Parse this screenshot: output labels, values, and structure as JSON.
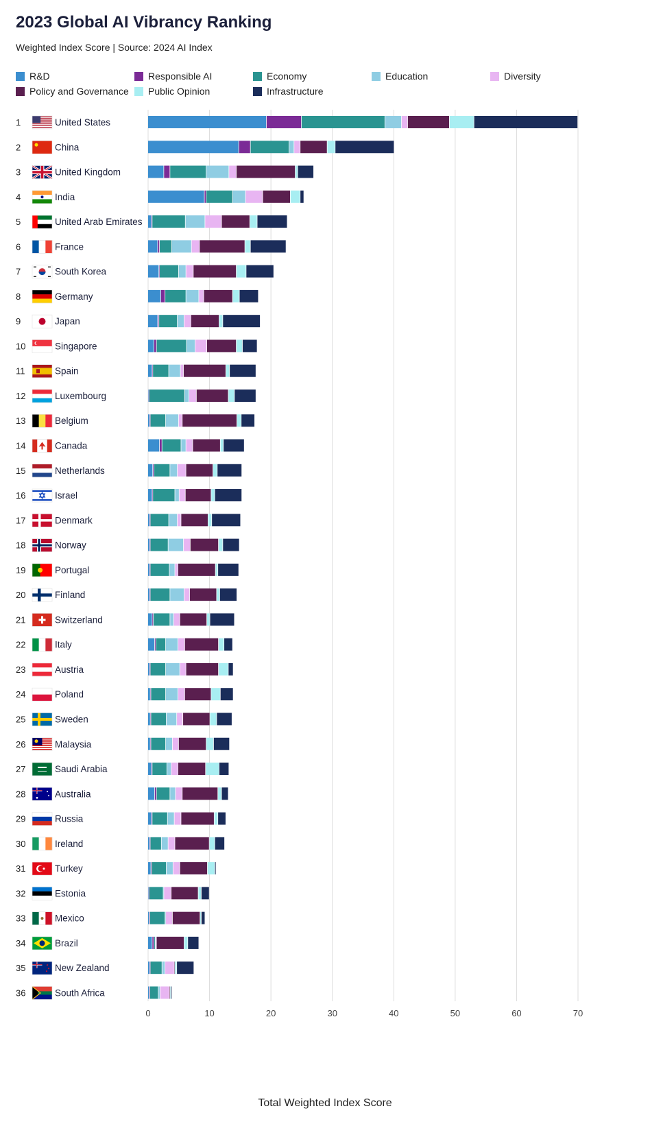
{
  "title": "2023 Global AI Vibrancy Ranking",
  "subtitle": "Weighted Index Score | Source: 2024 AI Index",
  "colors": {
    "R&D": "#3b8ecf",
    "Responsible AI": "#7b2b96",
    "Economy": "#2a9491",
    "Education": "#8fcde3",
    "Diversity": "#e8b5f2",
    "Policy and Governance": "#5a1f4f",
    "Public Opinion": "#a8eef2",
    "Infrastructure": "#1b2d5a"
  },
  "legend": [
    "R&D",
    "Responsible AI",
    "Economy",
    "Education",
    "Diversity",
    "Policy and Governance",
    "Public Opinion",
    "Infrastructure"
  ],
  "chart_data": {
    "type": "bar",
    "orientation": "horizontal",
    "stacked": true,
    "xlabel": "Total Weighted Index Score",
    "xlim": [
      0,
      70
    ],
    "xticks": [
      0,
      10,
      20,
      30,
      40,
      50,
      60,
      70
    ],
    "grid": true,
    "legend_position": "top",
    "countries": [
      {
        "rank": "1",
        "name": "United States",
        "flag": "us-flag",
        "values": [
          19.3,
          5.7,
          13.6,
          2.7,
          1.0,
          6.8,
          4.0,
          16.9
        ]
      },
      {
        "rank": "2",
        "name": "China",
        "flag": "cn-flag",
        "values": [
          14.8,
          1.9,
          6.3,
          0.8,
          1.0,
          4.4,
          1.3,
          9.6
        ]
      },
      {
        "rank": "3",
        "name": "United Kingdom",
        "flag": "gb-flag",
        "values": [
          2.6,
          1.0,
          5.9,
          3.7,
          1.2,
          9.6,
          0.4,
          2.6
        ]
      },
      {
        "rank": "4",
        "name": "India",
        "flag": "in-flag",
        "values": [
          9.2,
          0.3,
          4.3,
          2.1,
          2.8,
          4.5,
          1.6,
          0.6
        ]
      },
      {
        "rank": "5",
        "name": "United Arab Emirates",
        "flag": "ae-flag",
        "values": [
          0.6,
          0.1,
          5.4,
          3.2,
          2.7,
          4.6,
          1.2,
          4.9
        ]
      },
      {
        "rank": "6",
        "name": "France",
        "flag": "fr-flag",
        "values": [
          1.6,
          0.3,
          2.0,
          3.2,
          1.3,
          7.4,
          0.9,
          5.8
        ]
      },
      {
        "rank": "7",
        "name": "South Korea",
        "flag": "kr-flag",
        "values": [
          1.8,
          0.1,
          3.1,
          1.2,
          1.2,
          7.0,
          1.6,
          4.5
        ]
      },
      {
        "rank": "8",
        "name": "Germany",
        "flag": "de-flag",
        "values": [
          2.1,
          0.7,
          3.4,
          2.1,
          0.8,
          4.7,
          1.1,
          3.1
        ]
      },
      {
        "rank": "9",
        "name": "Japan",
        "flag": "jp-flag",
        "values": [
          1.6,
          0.2,
          3.0,
          1.1,
          1.1,
          4.6,
          0.6,
          6.1
        ]
      },
      {
        "rank": "10",
        "name": "Singapore",
        "flag": "sg-flag",
        "values": [
          1.0,
          0.4,
          4.9,
          1.4,
          1.9,
          4.8,
          1.0,
          2.4
        ]
      },
      {
        "rank": "11",
        "name": "Spain",
        "flag": "es-flag",
        "values": [
          0.7,
          0.1,
          2.6,
          1.9,
          0.5,
          6.9,
          0.6,
          4.3
        ]
      },
      {
        "rank": "12",
        "name": "Luxembourg",
        "flag": "lu-flag",
        "values": [
          0.1,
          0.1,
          5.8,
          0.7,
          1.2,
          5.2,
          1.0,
          3.5
        ]
      },
      {
        "rank": "13",
        "name": "Belgium",
        "flag": "be-flag",
        "values": [
          0.3,
          0.1,
          2.5,
          2.1,
          0.6,
          8.9,
          0.7,
          2.2
        ]
      },
      {
        "rank": "14",
        "name": "Canada",
        "flag": "ca-flag",
        "values": [
          1.9,
          0.4,
          3.1,
          0.8,
          1.1,
          4.5,
          0.5,
          3.4
        ]
      },
      {
        "rank": "15",
        "name": "Netherlands",
        "flag": "nl-flag",
        "values": [
          0.8,
          0.2,
          2.6,
          1.2,
          1.4,
          4.4,
          0.7,
          4.0
        ]
      },
      {
        "rank": "16",
        "name": "Israel",
        "flag": "il-flag",
        "values": [
          0.7,
          0.1,
          3.6,
          0.7,
          1.0,
          4.2,
          0.6,
          4.4
        ]
      },
      {
        "rank": "17",
        "name": "Denmark",
        "flag": "dk-flag",
        "values": [
          0.3,
          0.1,
          3.0,
          1.4,
          0.6,
          4.4,
          0.6,
          4.7
        ]
      },
      {
        "rank": "18",
        "name": "Norway",
        "flag": "no-flag",
        "values": [
          0.3,
          0.1,
          2.9,
          2.5,
          1.1,
          4.6,
          0.7,
          2.7
        ]
      },
      {
        "rank": "19",
        "name": "Portugal",
        "flag": "pt-flag",
        "values": [
          0.3,
          0.1,
          3.1,
          0.9,
          0.5,
          6.1,
          0.4,
          3.4
        ]
      },
      {
        "rank": "20",
        "name": "Finland",
        "flag": "fi-flag",
        "values": [
          0.3,
          0.1,
          3.2,
          2.3,
          0.9,
          4.4,
          0.5,
          2.8
        ]
      },
      {
        "rank": "21",
        "name": "Switzerland",
        "flag": "ch-flag",
        "values": [
          0.7,
          0.2,
          2.7,
          0.6,
          1.0,
          4.4,
          0.5,
          4.0
        ]
      },
      {
        "rank": "22",
        "name": "Italy",
        "flag": "it-flag",
        "values": [
          1.1,
          0.2,
          1.6,
          2.0,
          1.1,
          5.5,
          0.9,
          1.4
        ]
      },
      {
        "rank": "23",
        "name": "Austria",
        "flag": "at-flag",
        "values": [
          0.3,
          0.1,
          2.5,
          2.3,
          1.0,
          5.3,
          1.6,
          0.8
        ]
      },
      {
        "rank": "24",
        "name": "Poland",
        "flag": "pl-flag",
        "values": [
          0.4,
          0.1,
          2.4,
          2.0,
          1.1,
          4.3,
          1.5,
          2.1
        ]
      },
      {
        "rank": "25",
        "name": "Sweden",
        "flag": "se-flag",
        "values": [
          0.4,
          0.1,
          2.5,
          1.7,
          1.0,
          4.4,
          1.1,
          2.5
        ]
      },
      {
        "rank": "26",
        "name": "Malaysia",
        "flag": "my-flag",
        "values": [
          0.4,
          0.1,
          2.4,
          1.1,
          1.0,
          4.5,
          1.2,
          2.6
        ]
      },
      {
        "rank": "27",
        "name": "Saudi Arabia",
        "flag": "sa-flag",
        "values": [
          0.6,
          0.1,
          2.4,
          0.7,
          1.1,
          4.5,
          2.2,
          1.6
        ]
      },
      {
        "rank": "28",
        "name": "Australia",
        "flag": "au-flag",
        "values": [
          1.1,
          0.3,
          2.2,
          0.9,
          1.1,
          5.8,
          0.6,
          1.1
        ]
      },
      {
        "rank": "29",
        "name": "Russia",
        "flag": "ru-flag",
        "values": [
          0.6,
          0.1,
          2.5,
          1.1,
          1.1,
          5.4,
          0.6,
          1.3
        ]
      },
      {
        "rank": "30",
        "name": "Ireland",
        "flag": "ie-flag",
        "values": [
          0.3,
          0.1,
          1.8,
          1.1,
          1.1,
          5.6,
          0.9,
          1.6
        ]
      },
      {
        "rank": "31",
        "name": "Turkey",
        "flag": "tr-flag",
        "values": [
          0.5,
          0.1,
          2.4,
          1.1,
          1.1,
          4.5,
          1.2,
          0.2
        ]
      },
      {
        "rank": "32",
        "name": "Estonia",
        "flag": "ee-flag",
        "values": [
          0.1,
          0.1,
          2.3,
          0.1,
          1.2,
          4.4,
          0.5,
          1.3
        ]
      },
      {
        "rank": "33",
        "name": "Mexico",
        "flag": "mx-flag",
        "values": [
          0.2,
          0.1,
          2.5,
          0.1,
          1.1,
          4.5,
          0.2,
          0.6
        ]
      },
      {
        "rank": "34",
        "name": "Brazil",
        "flag": "br-flag",
        "values": [
          0.7,
          0.3,
          0.2,
          0.1,
          0.1,
          4.5,
          0.6,
          1.8
        ]
      },
      {
        "rank": "35",
        "name": "New Zealand",
        "flag": "nz-flag",
        "values": [
          0.3,
          0.1,
          1.9,
          0.5,
          1.5,
          0.1,
          0.3,
          2.8
        ]
      },
      {
        "rank": "36",
        "name": "South Africa",
        "flag": "za-flag",
        "values": [
          0.2,
          0.1,
          1.4,
          0.3,
          1.5,
          0.1,
          0.1,
          0.2
        ]
      }
    ]
  }
}
